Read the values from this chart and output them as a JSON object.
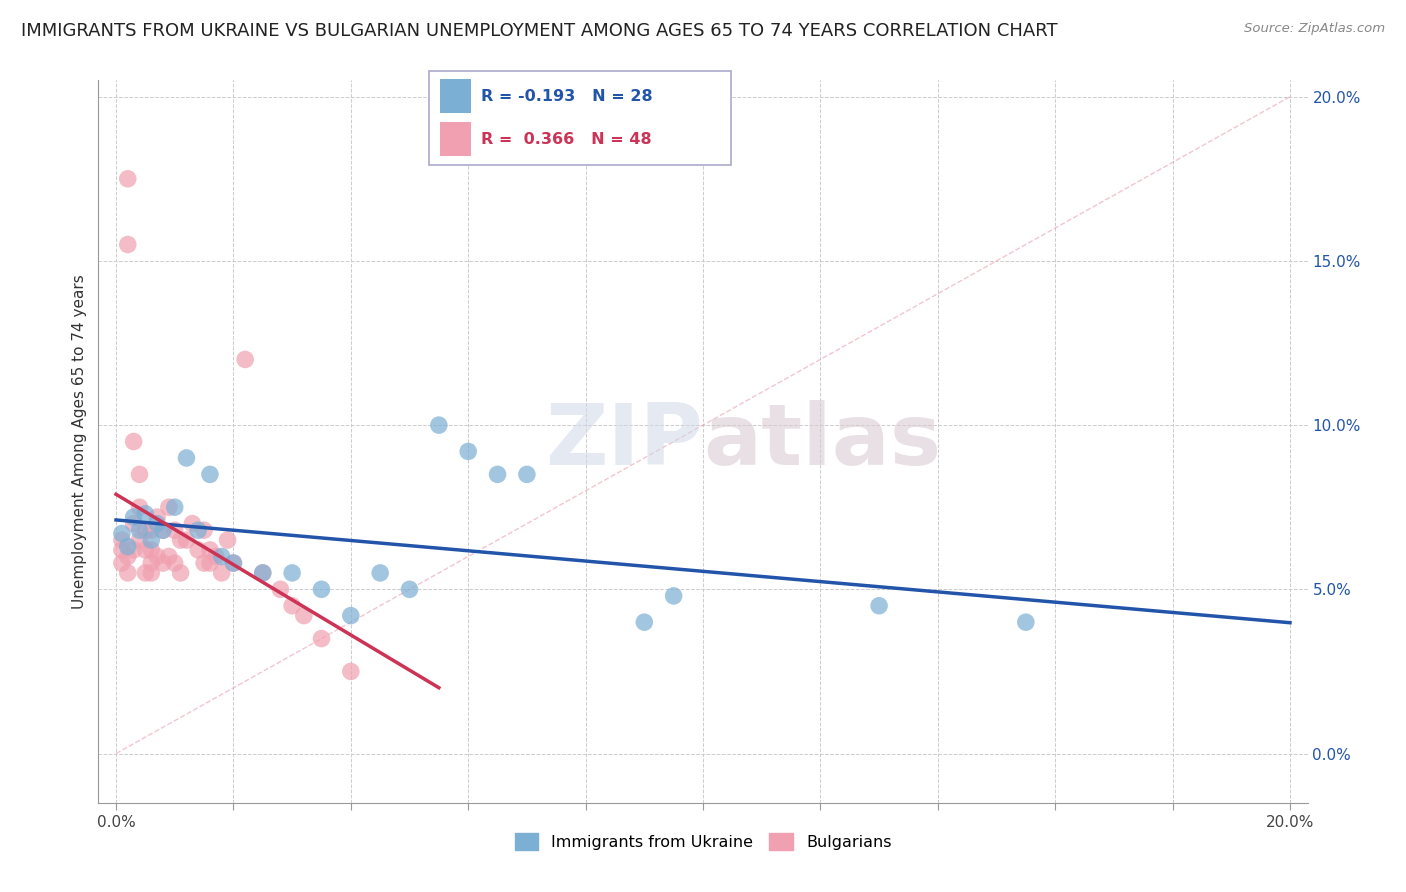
{
  "title": "IMMIGRANTS FROM UKRAINE VS BULGARIAN UNEMPLOYMENT AMONG AGES 65 TO 74 YEARS CORRELATION CHART",
  "source": "Source: ZipAtlas.com",
  "ylabel": "Unemployment Among Ages 65 to 74 years",
  "xlim": [
    0.0,
    0.2
  ],
  "ylim": [
    -0.01,
    0.205
  ],
  "xticks": [
    0.0,
    0.02,
    0.04,
    0.06,
    0.08,
    0.1,
    0.12,
    0.14,
    0.16,
    0.18,
    0.2
  ],
  "yticks": [
    0.0,
    0.05,
    0.1,
    0.15,
    0.2
  ],
  "ytick_labels": [
    "0.0%",
    "5.0%",
    "10.0%",
    "15.0%",
    "20.0%"
  ],
  "xtick_labels_show": {
    "0.0": "0.0%",
    "0.20": "20.0%"
  },
  "ukraine_color": "#7bafd4",
  "ukrainian_color_light": "#aacce8",
  "bulgarian_color": "#f0a0b0",
  "bulgarian_color_dark": "#e06070",
  "ukraine_line_color": "#2255aa",
  "bulgarian_line_color": "#cc3355",
  "diag_line_color": "#e8a0b0",
  "legend_R_ukraine": "R = -0.193",
  "legend_N_ukraine": "N = 28",
  "legend_R_bulgarian": "R =  0.366",
  "legend_N_bulgarian": "N = 48",
  "ukraine_x": [
    0.001,
    0.002,
    0.003,
    0.004,
    0.005,
    0.006,
    0.007,
    0.008,
    0.01,
    0.012,
    0.014,
    0.016,
    0.018,
    0.02,
    0.025,
    0.03,
    0.035,
    0.04,
    0.045,
    0.05,
    0.055,
    0.06,
    0.065,
    0.07,
    0.09,
    0.095,
    0.13,
    0.155
  ],
  "ukraine_y": [
    0.067,
    0.063,
    0.072,
    0.068,
    0.073,
    0.065,
    0.07,
    0.068,
    0.075,
    0.09,
    0.068,
    0.085,
    0.06,
    0.058,
    0.055,
    0.055,
    0.05,
    0.042,
    0.055,
    0.05,
    0.1,
    0.092,
    0.085,
    0.085,
    0.04,
    0.048,
    0.045,
    0.04
  ],
  "bulgarian_x": [
    0.001,
    0.001,
    0.001,
    0.002,
    0.002,
    0.002,
    0.002,
    0.003,
    0.003,
    0.003,
    0.004,
    0.004,
    0.004,
    0.005,
    0.005,
    0.005,
    0.006,
    0.006,
    0.006,
    0.006,
    0.007,
    0.007,
    0.008,
    0.008,
    0.009,
    0.009,
    0.01,
    0.01,
    0.011,
    0.011,
    0.012,
    0.013,
    0.014,
    0.015,
    0.015,
    0.016,
    0.016,
    0.017,
    0.018,
    0.019,
    0.02,
    0.022,
    0.025,
    0.028,
    0.03,
    0.032,
    0.035,
    0.04
  ],
  "bulgarian_y": [
    0.062,
    0.058,
    0.065,
    0.175,
    0.155,
    0.06,
    0.055,
    0.095,
    0.07,
    0.062,
    0.085,
    0.075,
    0.065,
    0.068,
    0.062,
    0.055,
    0.068,
    0.062,
    0.058,
    0.055,
    0.072,
    0.06,
    0.068,
    0.058,
    0.075,
    0.06,
    0.068,
    0.058,
    0.065,
    0.055,
    0.065,
    0.07,
    0.062,
    0.068,
    0.058,
    0.062,
    0.058,
    0.06,
    0.055,
    0.065,
    0.058,
    0.12,
    0.055,
    0.05,
    0.045,
    0.042,
    0.035,
    0.025
  ],
  "watermark": "ZIPatlas",
  "background_color": "#ffffff",
  "grid_color": "#cccccc",
  "title_fontsize": 13,
  "axis_label_fontsize": 11,
  "tick_fontsize": 11,
  "right_tick_color": "#2255aa"
}
